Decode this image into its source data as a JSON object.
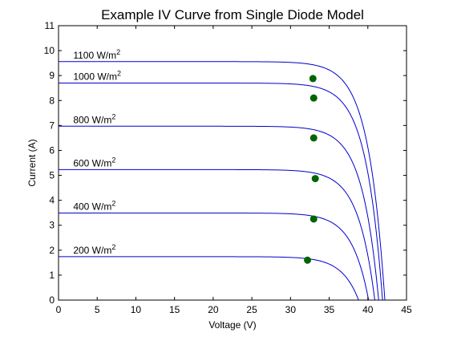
{
  "chart_data": {
    "type": "line",
    "title": "Example IV Curve from Single Diode Model",
    "xlabel": "Voltage (V)",
    "ylabel": "Current (A)",
    "xlim": [
      0,
      45
    ],
    "ylim": [
      0,
      11
    ],
    "xticks": [
      0,
      5,
      10,
      15,
      20,
      25,
      30,
      35,
      40,
      45
    ],
    "yticks": [
      0,
      1,
      2,
      3,
      4,
      5,
      6,
      7,
      8,
      9,
      10,
      11
    ],
    "grid": false,
    "legend": "none",
    "line_color": "#0000cc",
    "marker_color": "#006400",
    "series": [
      {
        "name": "1100 W/m2",
        "label_base": "1100 W/m",
        "label_sup": "2",
        "isc": 9.56,
        "voc": 42.2,
        "mpp": [
          32.9,
          8.88
        ]
      },
      {
        "name": "1000 W/m2",
        "label_base": "1000 W/m",
        "label_sup": "2",
        "isc": 8.7,
        "voc": 41.9,
        "mpp": [
          33.0,
          8.1
        ]
      },
      {
        "name": "800 W/m2",
        "label_base": "800 W/m",
        "label_sup": "2",
        "isc": 6.97,
        "voc": 41.4,
        "mpp": [
          33.0,
          6.5
        ]
      },
      {
        "name": "600 W/m2",
        "label_base": "600 W/m",
        "label_sup": "2",
        "isc": 5.23,
        "voc": 40.9,
        "mpp": [
          33.2,
          4.87
        ]
      },
      {
        "name": "400 W/m2",
        "label_base": "400 W/m",
        "label_sup": "2",
        "isc": 3.49,
        "voc": 40.1,
        "mpp": [
          33.0,
          3.25
        ]
      },
      {
        "name": "200 W/m2",
        "label_base": "200 W/m",
        "label_sup": "2",
        "isc": 1.74,
        "voc": 38.8,
        "mpp": [
          32.2,
          1.6
        ]
      }
    ]
  }
}
